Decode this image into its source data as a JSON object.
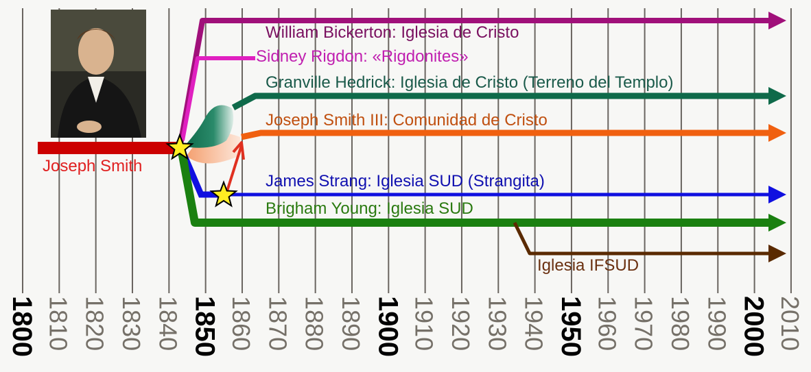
{
  "years": [
    1800,
    1810,
    1820,
    1830,
    1840,
    1850,
    1860,
    1870,
    1880,
    1890,
    1900,
    1910,
    1920,
    1930,
    1940,
    1950,
    1960,
    1970,
    1980,
    1990,
    2000,
    2010
  ],
  "major_years": [
    1800,
    1850,
    1900,
    1950,
    2000
  ],
  "founder": {
    "label": "Joseph Smith",
    "color": "#cc0000"
  },
  "branches": [
    {
      "id": "bickerton",
      "label": "William Bickerton: Iglesia de Cristo",
      "color": "#a0107a",
      "text_color": "#7a1060",
      "start": 1845,
      "end": 2010
    },
    {
      "id": "rigdon",
      "label": "Sidney Rigdon: «Rigdonites»",
      "color": "#e020c0",
      "text_color": "#c020b0",
      "start": 1844,
      "end": 1866
    },
    {
      "id": "hedrick",
      "label": "Granville Hedrick: Iglesia de Cristo (Terreno del Templo)",
      "color": "#0f6a4a",
      "text_color": "#1a5a4a",
      "start": 1863,
      "end": 2010
    },
    {
      "id": "smith3",
      "label": "Joseph Smith III: Comunidad de Cristo",
      "color": "#f06010",
      "text_color": "#c05010",
      "start": 1860,
      "end": 2010
    },
    {
      "id": "strang",
      "label": "James Strang: Iglesia SUD (Strangita)",
      "color": "#1010e0",
      "text_color": "#1010b0",
      "start": 1844,
      "end": 2010
    },
    {
      "id": "brigham",
      "label": "Brigham Young: Iglesia SUD",
      "color": "#1a8010",
      "text_color": "#2a7a10",
      "start": 1844,
      "end": 2010
    },
    {
      "id": "ifsud",
      "label": "Iglesia IFSUD",
      "color": "#5a2a00",
      "text_color": "#6a3010",
      "start": 1934,
      "end": 2010
    }
  ]
}
